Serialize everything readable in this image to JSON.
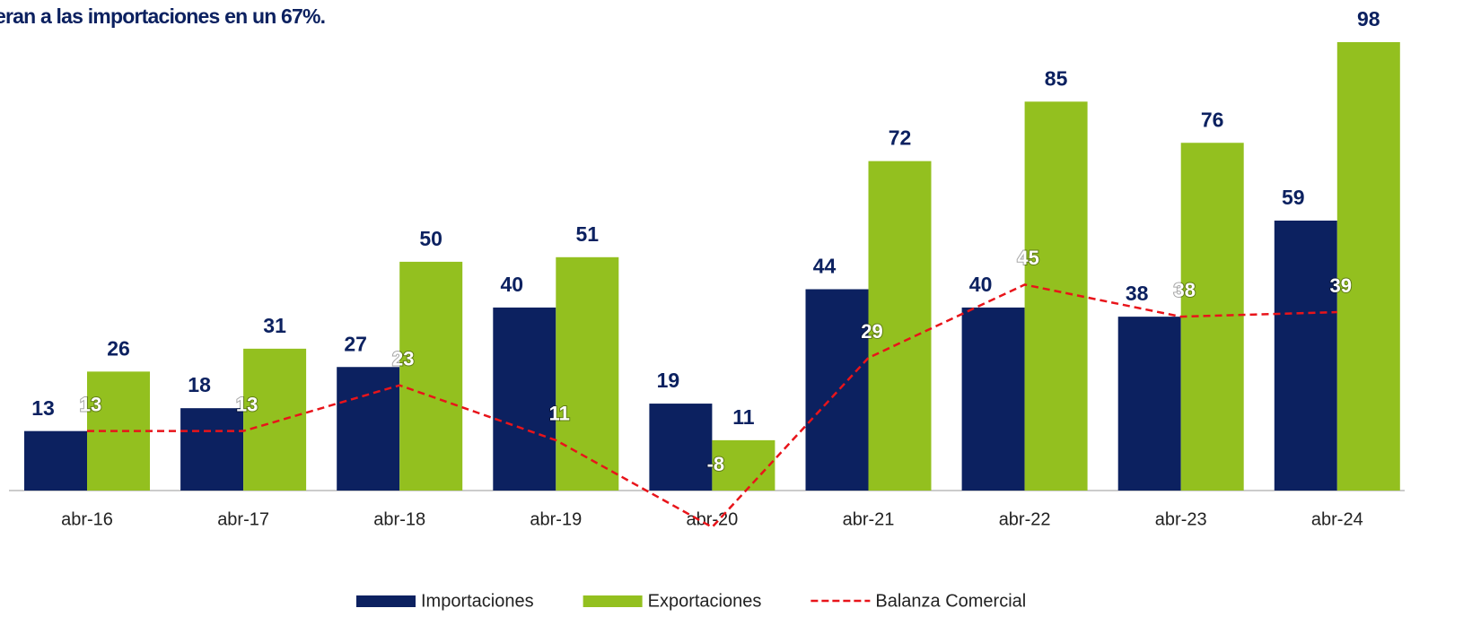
{
  "chart_data": {
    "type": "bar_line",
    "title": "eran a las importaciones en un 67%.",
    "categories": [
      "abr-16",
      "abr-17",
      "abr-18",
      "abr-19",
      "abr-20",
      "abr-21",
      "abr-22",
      "abr-23",
      "abr-24"
    ],
    "series": [
      {
        "name": "Importaciones",
        "color": "#0c2160",
        "type": "bar",
        "values": [
          13,
          18,
          27,
          40,
          19,
          44,
          40,
          38,
          59
        ]
      },
      {
        "name": "Exportaciones",
        "color": "#93c01f",
        "type": "bar",
        "values": [
          26,
          31,
          50,
          51,
          11,
          72,
          85,
          76,
          98
        ]
      },
      {
        "name": "Balanza Comercial",
        "color": "#e8141a",
        "type": "line",
        "values": [
          13,
          13,
          23,
          11,
          -8,
          29,
          45,
          38,
          39
        ]
      }
    ],
    "ylim": [
      0,
      98
    ]
  }
}
